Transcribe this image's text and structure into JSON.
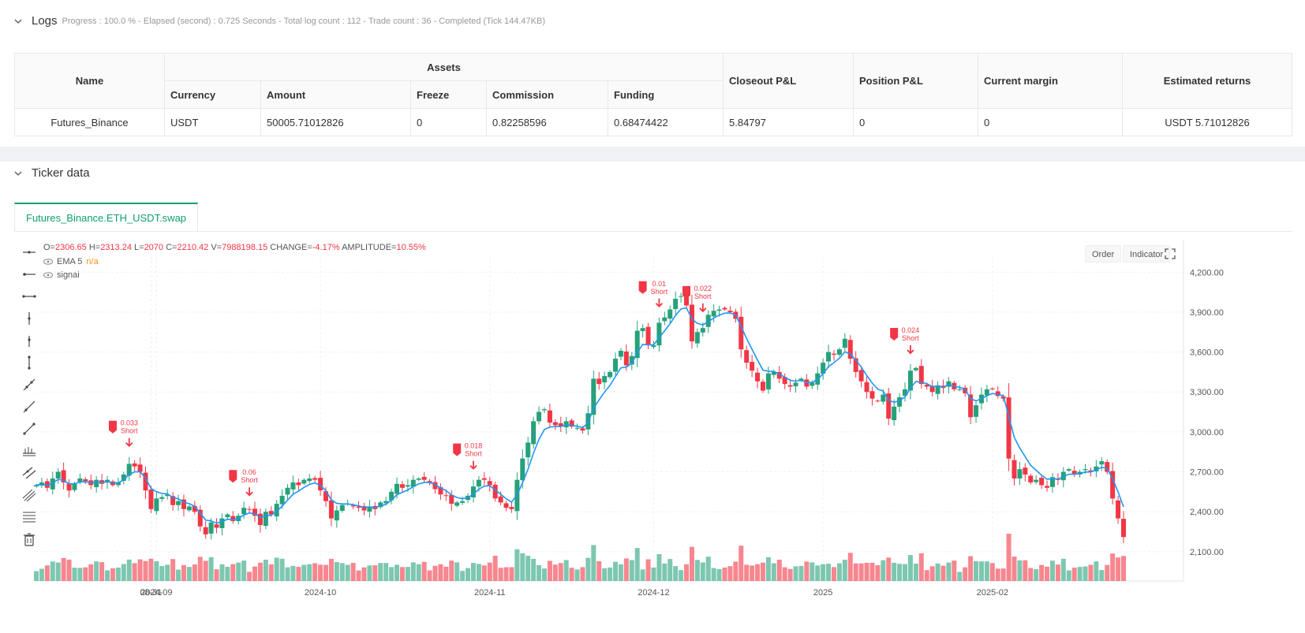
{
  "logs": {
    "title": "Logs",
    "summary": "Progress : 100.0 % - Elapsed (second) : 0.725  Seconds - Total log count : 112 - Trade count : 36 - Completed (Tick 144.47KB)"
  },
  "assets_table": {
    "headers": {
      "name": "Name",
      "assets": "Assets",
      "currency": "Currency",
      "amount": "Amount",
      "freeze": "Freeze",
      "commission": "Commission",
      "funding": "Funding",
      "closeout_pnl": "Closeout P&L",
      "position_pnl": "Position P&L",
      "current_margin": "Current margin",
      "estimated_returns": "Estimated returns"
    },
    "row": {
      "name": "Futures_Binance",
      "currency": "USDT",
      "amount": "50005.71012826",
      "freeze": "0",
      "commission": "0.82258596",
      "funding": "0.68474422",
      "closeout_pnl": "5.84797",
      "position_pnl": "0",
      "current_margin": "0",
      "estimated_returns": "USDT 5.71012826"
    }
  },
  "ticker": {
    "title": "Ticker data",
    "tab_label": "Futures_Binance.ETH_USDT.swap"
  },
  "ohlc": {
    "o_label": "O=",
    "o": "2306.65",
    "h_label": "H=",
    "h": "2313.24",
    "l_label": "L=",
    "l": "2070",
    "c_label": "C=",
    "c": "2210.42",
    "v_label": "V=",
    "v": "7988198.15",
    "change_label": "CHANGE=",
    "change": "-4.17%",
    "amp_label": "AMPLITUDE=",
    "amp": "10.55%"
  },
  "legend": {
    "ema_label": "EMA 5",
    "ema_value": "n/a",
    "signal_label": "signal"
  },
  "buttons": {
    "order": "Order",
    "indicator": "Indicator"
  },
  "colors": {
    "up": "#26a17b",
    "down": "#f23645",
    "ema": "#2196f3",
    "accent": "#0e9f6e"
  },
  "chart_data": {
    "type": "candlestick",
    "symbol": "Futures_Binance.ETH_USDT.swap",
    "y_ticks": [
      "4,200.00",
      "3,900.00",
      "3,600.00",
      "3,300.00",
      "3,000.00",
      "2,700.00",
      "2,400.00",
      "2,100.00"
    ],
    "y_tick_values": [
      4200,
      3900,
      3600,
      3300,
      3000,
      2700,
      2400,
      2100
    ],
    "x_ticks": [
      "08-31",
      "2024-09",
      "2024-10",
      "2024-11",
      "2024-12",
      "2025",
      "2025-02"
    ],
    "x_tick_day_index": [
      21,
      22,
      52,
      83,
      113,
      144,
      175
    ],
    "x_range": {
      "start": "2024-08-10",
      "end": "2025-02-04"
    },
    "ylim": [
      1880,
      4320
    ],
    "close": [
      2600,
      2620,
      2580,
      2650,
      2700,
      2620,
      2560,
      2610,
      2650,
      2630,
      2600,
      2640,
      2610,
      2640,
      2600,
      2620,
      2680,
      2760,
      2740,
      2700,
      2560,
      2420,
      2500,
      2510,
      2530,
      2450,
      2480,
      2420,
      2440,
      2400,
      2290,
      2230,
      2320,
      2280,
      2350,
      2380,
      2330,
      2370,
      2430,
      2420,
      2370,
      2300,
      2400,
      2380,
      2460,
      2520,
      2580,
      2620,
      2600,
      2640,
      2650,
      2640,
      2560,
      2480,
      2350,
      2410,
      2450,
      2460,
      2440,
      2430,
      2410,
      2440,
      2420,
      2470,
      2480,
      2550,
      2610,
      2580,
      2600,
      2640,
      2650,
      2640,
      2620,
      2570,
      2530,
      2520,
      2460,
      2470,
      2480,
      2520,
      2590,
      2640,
      2640,
      2600,
      2500,
      2470,
      2430,
      2420,
      2640,
      2800,
      2920,
      3080,
      3150,
      3170,
      3070,
      3050,
      3040,
      3080,
      3040,
      3030,
      3010,
      3140,
      3400,
      3360,
      3420,
      3450,
      3550,
      3610,
      3500,
      3570,
      3760,
      3780,
      3650,
      3650,
      3820,
      3860,
      3920,
      4000,
      4020,
      3950,
      3680,
      3750,
      3780,
      3880,
      3910,
      3920,
      3920,
      3900,
      3850,
      3620,
      3520,
      3460,
      3380,
      3310,
      3440,
      3450,
      3400,
      3360,
      3340,
      3370,
      3400,
      3340,
      3370,
      3440,
      3520,
      3600,
      3580,
      3620,
      3700,
      3550,
      3450,
      3380,
      3300,
      3250,
      3230,
      3280,
      3100,
      3190,
      3260,
      3320,
      3460,
      3480,
      3360,
      3340,
      3300,
      3350,
      3330,
      3380,
      3320,
      3320,
      3290,
      3110,
      3200,
      3280,
      3320,
      3320,
      3270,
      3250,
      2800,
      2650,
      2720,
      2680,
      2620,
      2640,
      2600,
      2580,
      2660,
      2640,
      2700,
      2720,
      2680,
      2700,
      2720,
      2700,
      2740,
      2780,
      2700,
      2500,
      2350,
      2210
    ],
    "ema5": "computed from close (EMA 5)",
    "signals": [
      {
        "index": 17,
        "label": "0.033",
        "side": "Short"
      },
      {
        "index": 39,
        "label": "0.06",
        "side": "Short"
      },
      {
        "index": 80,
        "label": "0.018",
        "side": "Short"
      },
      {
        "index": 114,
        "label": "0.01",
        "side": "Short"
      },
      {
        "index": 122,
        "label": "0.022",
        "side": "Short"
      },
      {
        "index": 160,
        "label": "0.024",
        "side": "Short"
      }
    ]
  }
}
